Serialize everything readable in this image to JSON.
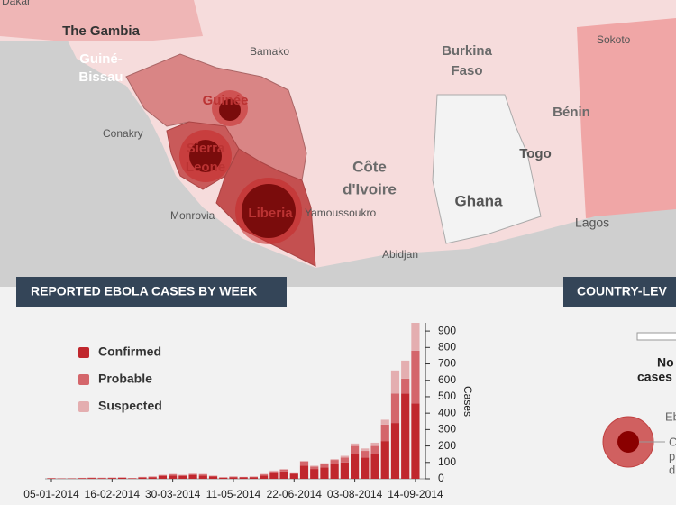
{
  "map": {
    "countries": [
      [
        "The Gambia"
      ],
      [
        "Guiné-",
        "Bissau"
      ],
      [
        "Guinée"
      ],
      [
        "Sierra",
        "Leone"
      ],
      [
        "Liberia"
      ],
      [
        "Burkina",
        "Faso"
      ],
      [
        "Côte",
        "d'Ivoire"
      ],
      [
        "Ghana"
      ],
      [
        "Togo"
      ],
      [
        "Bénin"
      ]
    ],
    "cities": [
      "Dakar",
      "Bamako",
      "Sokoto",
      "Conakry",
      "Monrovia",
      "Yamoussoukro",
      "Abidjan",
      "Lagos"
    ]
  },
  "side_panel": {
    "title": "COUNTRY-LEV",
    "texts": [
      "No",
      "cases",
      "Eb",
      "C",
      "p",
      "d"
    ]
  },
  "chart_data": {
    "type": "bar",
    "stacked": true,
    "title": "REPORTED EBOLA CASES BY WEEK",
    "y_label": "Cases",
    "categories": [
      "05-01-2014",
      null,
      null,
      null,
      null,
      null,
      "16-02-2014",
      null,
      null,
      null,
      null,
      null,
      "30-03-2014",
      null,
      null,
      null,
      null,
      null,
      "11-05-2014",
      null,
      null,
      null,
      null,
      null,
      "22-06-2014",
      null,
      null,
      null,
      null,
      null,
      "03-08-2014",
      null,
      null,
      null,
      null,
      null,
      "14-09-2014"
    ],
    "series": [
      {
        "name": "Confirmed",
        "color": "#c0272d",
        "values": [
          3,
          2,
          2,
          4,
          5,
          4,
          5,
          6,
          3,
          8,
          10,
          18,
          20,
          18,
          22,
          20,
          14,
          6,
          10,
          8,
          10,
          20,
          35,
          45,
          30,
          80,
          60,
          70,
          90,
          100,
          150,
          130,
          150,
          230,
          340,
          520,
          460
        ]
      },
      {
        "name": "Probable",
        "color": "#d4666b",
        "values": [
          1,
          1,
          1,
          1,
          2,
          2,
          2,
          2,
          1,
          2,
          3,
          5,
          7,
          5,
          7,
          7,
          4,
          3,
          3,
          3,
          3,
          7,
          10,
          10,
          7,
          25,
          15,
          20,
          25,
          30,
          50,
          40,
          50,
          100,
          180,
          90,
          320
        ]
      },
      {
        "name": "Suspected",
        "color": "#e4aeb0",
        "values": [
          1,
          0,
          1,
          1,
          1,
          1,
          1,
          1,
          1,
          2,
          2,
          2,
          3,
          2,
          3,
          3,
          2,
          1,
          2,
          1,
          1,
          3,
          5,
          5,
          3,
          5,
          5,
          5,
          5,
          10,
          15,
          15,
          20,
          30,
          140,
          110,
          170
        ]
      }
    ],
    "ylim": [
      0,
      950
    ],
    "yticks": [
      0,
      100,
      200,
      300,
      400,
      500,
      600,
      700,
      800,
      900
    ],
    "legend": "upper-left"
  }
}
